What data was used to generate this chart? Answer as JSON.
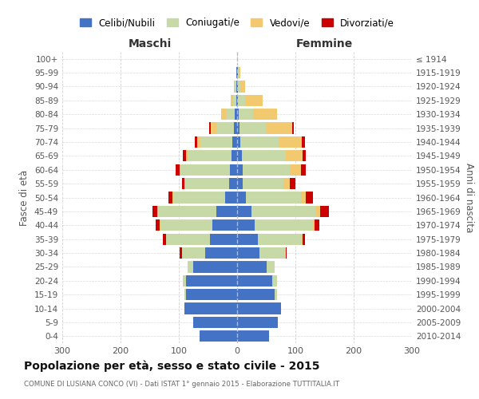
{
  "age_groups": [
    "0-4",
    "5-9",
    "10-14",
    "15-19",
    "20-24",
    "25-29",
    "30-34",
    "35-39",
    "40-44",
    "45-49",
    "50-54",
    "55-59",
    "60-64",
    "65-69",
    "70-74",
    "75-79",
    "80-84",
    "85-89",
    "90-94",
    "95-99",
    "100+"
  ],
  "birth_years": [
    "2010-2014",
    "2005-2009",
    "2000-2004",
    "1995-1999",
    "1990-1994",
    "1985-1989",
    "1980-1984",
    "1975-1979",
    "1970-1974",
    "1965-1969",
    "1960-1964",
    "1955-1959",
    "1950-1954",
    "1945-1949",
    "1940-1944",
    "1935-1939",
    "1930-1934",
    "1925-1929",
    "1920-1924",
    "1915-1919",
    "≤ 1914"
  ],
  "maschi_celibi": [
    65,
    75,
    90,
    88,
    88,
    75,
    55,
    47,
    42,
    35,
    20,
    14,
    12,
    10,
    8,
    5,
    4,
    2,
    1,
    1,
    0
  ],
  "maschi_coniugati": [
    0,
    0,
    0,
    2,
    5,
    10,
    40,
    75,
    90,
    100,
    90,
    75,
    85,
    75,
    55,
    30,
    15,
    5,
    3,
    1,
    0
  ],
  "maschi_vedovi": [
    0,
    0,
    0,
    0,
    0,
    0,
    0,
    0,
    1,
    2,
    1,
    1,
    2,
    3,
    5,
    10,
    8,
    4,
    2,
    0,
    0
  ],
  "maschi_divorziati": [
    0,
    0,
    0,
    0,
    0,
    0,
    3,
    5,
    7,
    8,
    7,
    5,
    7,
    5,
    5,
    3,
    0,
    0,
    0,
    0,
    0
  ],
  "femmine_celibi": [
    55,
    70,
    75,
    65,
    60,
    50,
    38,
    35,
    30,
    25,
    15,
    10,
    10,
    8,
    6,
    4,
    3,
    2,
    1,
    1,
    0
  ],
  "femmine_coniugati": [
    0,
    0,
    0,
    3,
    8,
    15,
    45,
    75,
    100,
    110,
    95,
    70,
    80,
    75,
    65,
    45,
    25,
    12,
    5,
    2,
    0
  ],
  "femmine_vedovi": [
    0,
    0,
    0,
    0,
    0,
    0,
    0,
    2,
    3,
    8,
    8,
    10,
    20,
    30,
    40,
    45,
    40,
    30,
    8,
    3,
    0
  ],
  "femmine_divorziati": [
    0,
    0,
    0,
    0,
    0,
    0,
    2,
    5,
    8,
    15,
    12,
    10,
    8,
    5,
    5,
    3,
    0,
    0,
    0,
    0,
    0
  ],
  "color_celibi": "#4472C4",
  "color_coniugati": "#C8D9A8",
  "color_vedovi": "#F2C96E",
  "color_divorziati": "#CC0000",
  "title": "Popolazione per età, sesso e stato civile - 2015",
  "subtitle": "COMUNE DI LUSIANA CONCO (VI) - Dati ISTAT 1° gennaio 2015 - Elaborazione TUTTITALIA.IT",
  "xlabel_left": "Maschi",
  "xlabel_right": "Femmine",
  "ylabel_left": "Fasce di età",
  "ylabel_right": "Anni di nascita",
  "legend_labels": [
    "Celibi/Nubili",
    "Coniugati/e",
    "Vedovi/e",
    "Divorziati/e"
  ],
  "xlim": 300,
  "background_color": "#ffffff",
  "grid_color": "#cccccc"
}
